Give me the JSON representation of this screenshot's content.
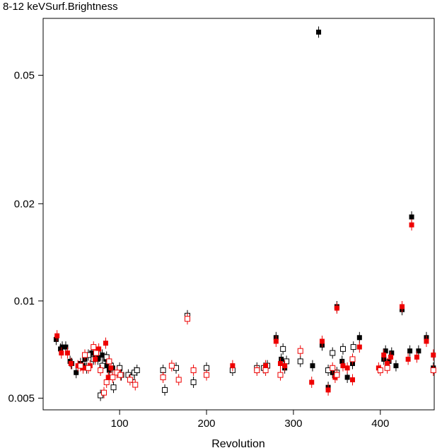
{
  "chart_data": {
    "type": "scatter",
    "title": "8-12 keVSurf.Brightness",
    "xlabel": "Revolution",
    "ylabel": "",
    "x_scale": "linear",
    "y_scale": "log",
    "xlim": [
      12,
      462
    ],
    "ylim": [
      0.0046,
      0.075
    ],
    "x_ticks": [
      100,
      200,
      300,
      400
    ],
    "x_tick_labels": [
      "100",
      "200",
      "300",
      "400"
    ],
    "y_ticks": [
      0.005,
      0.01,
      0.02,
      0.05
    ],
    "y_tick_labels": [
      "0.005",
      "0.01",
      "0.02",
      "0.05"
    ],
    "grid": false,
    "series": [
      {
        "color": "#000000",
        "marker": "filled-square",
        "points": [
          [
            27,
            0.0076
          ],
          [
            32,
            0.0071
          ],
          [
            34,
            0.0072
          ],
          [
            38,
            0.0072
          ],
          [
            43,
            0.0065
          ],
          [
            45,
            0.0064
          ],
          [
            50,
            0.006
          ],
          [
            55,
            0.0064
          ],
          [
            58,
            0.0063
          ],
          [
            60,
            0.0066
          ],
          [
            62,
            0.0062
          ],
          [
            68,
            0.0069
          ],
          [
            72,
            0.0067
          ],
          [
            75,
            0.0066
          ],
          [
            78,
            0.0068
          ],
          [
            80,
            0.0068
          ],
          [
            84,
            0.0066
          ],
          [
            86,
            0.0063
          ],
          [
            88,
            0.0061
          ],
          [
            92,
            0.0062
          ],
          [
            280,
            0.0077
          ],
          [
            286,
            0.0066
          ],
          [
            290,
            0.0062
          ],
          [
            322,
            0.0063
          ],
          [
            333,
            0.0073
          ],
          [
            329,
            0.068
          ],
          [
            340,
            0.0054
          ],
          [
            345,
            0.006
          ],
          [
            348,
            0.0059
          ],
          [
            350,
            0.0096
          ],
          [
            356,
            0.0065
          ],
          [
            362,
            0.0058
          ],
          [
            368,
            0.0064
          ],
          [
            376,
            0.0077
          ],
          [
            404,
            0.0066
          ],
          [
            406,
            0.007
          ],
          [
            410,
            0.0065
          ],
          [
            413,
            0.0069
          ],
          [
            418,
            0.0063
          ],
          [
            425,
            0.0094
          ],
          [
            434,
            0.007
          ],
          [
            436,
            0.0182
          ],
          [
            444,
            0.007
          ],
          [
            453,
            0.0077
          ],
          [
            461,
            0.0062
          ]
        ]
      },
      {
        "color": "#000000",
        "marker": "open-square",
        "points": [
          [
            64,
            0.0068
          ],
          [
            70,
            0.0066
          ],
          [
            75,
            0.0069
          ],
          [
            80,
            0.0063
          ],
          [
            85,
            0.0067
          ],
          [
            90,
            0.0063
          ],
          [
            100,
            0.0062
          ],
          [
            102,
            0.0059
          ],
          [
            110,
            0.0059
          ],
          [
            114,
            0.0058
          ],
          [
            117,
            0.006
          ],
          [
            120,
            0.0061
          ],
          [
            150,
            0.0061
          ],
          [
            152,
            0.0053
          ],
          [
            165,
            0.0062
          ],
          [
            178,
            0.009
          ],
          [
            185,
            0.0056
          ],
          [
            200,
            0.0062
          ],
          [
            230,
            0.0061
          ],
          [
            258,
            0.0062
          ],
          [
            266,
            0.0062
          ],
          [
            270,
            0.0063
          ],
          [
            288,
            0.0071
          ],
          [
            292,
            0.0065
          ],
          [
            308,
            0.0065
          ],
          [
            340,
            0.0061
          ],
          [
            345,
            0.0069
          ],
          [
            350,
            0.006
          ],
          [
            357,
            0.0071
          ],
          [
            369,
            0.0072
          ],
          [
            78,
            0.0051
          ],
          [
            93,
            0.0054
          ]
        ]
      },
      {
        "color": "#ee0000",
        "marker": "filled-square",
        "points": [
          [
            28,
            0.0078
          ],
          [
            33,
            0.0069
          ],
          [
            40,
            0.0069
          ],
          [
            44,
            0.0064
          ],
          [
            52,
            0.0063
          ],
          [
            58,
            0.0062
          ],
          [
            66,
            0.0063
          ],
          [
            72,
            0.0066
          ],
          [
            76,
            0.0071
          ],
          [
            84,
            0.0074
          ],
          [
            87,
            0.0058
          ],
          [
            90,
            0.0062
          ],
          [
            230,
            0.0063
          ],
          [
            268,
            0.0063
          ],
          [
            280,
            0.0075
          ],
          [
            285,
            0.0064
          ],
          [
            290,
            0.0063
          ],
          [
            321,
            0.0056
          ],
          [
            333,
            0.0075
          ],
          [
            340,
            0.0053
          ],
          [
            348,
            0.0058
          ],
          [
            350,
            0.0095
          ],
          [
            357,
            0.0063
          ],
          [
            362,
            0.0062
          ],
          [
            368,
            0.0057
          ],
          [
            376,
            0.0072
          ],
          [
            398,
            0.0062
          ],
          [
            404,
            0.0068
          ],
          [
            408,
            0.0064
          ],
          [
            412,
            0.0067
          ],
          [
            425,
            0.0096
          ],
          [
            432,
            0.0066
          ],
          [
            436,
            0.0172
          ],
          [
            442,
            0.0067
          ],
          [
            453,
            0.0075
          ],
          [
            461,
            0.0068
          ]
        ]
      },
      {
        "color": "#ee0000",
        "marker": "open-square",
        "points": [
          [
            55,
            0.0063
          ],
          [
            60,
            0.0068
          ],
          [
            64,
            0.0062
          ],
          [
            70,
            0.0072
          ],
          [
            73,
            0.0069
          ],
          [
            78,
            0.0061
          ],
          [
            82,
            0.0052
          ],
          [
            85,
            0.0056
          ],
          [
            88,
            0.0065
          ],
          [
            92,
            0.0058
          ],
          [
            97,
            0.006
          ],
          [
            101,
            0.0059
          ],
          [
            112,
            0.0057
          ],
          [
            118,
            0.0055
          ],
          [
            150,
            0.0058
          ],
          [
            160,
            0.0063
          ],
          [
            168,
            0.0057
          ],
          [
            178,
            0.0088
          ],
          [
            185,
            0.0061
          ],
          [
            200,
            0.0059
          ],
          [
            258,
            0.0061
          ],
          [
            268,
            0.0061
          ],
          [
            285,
            0.0059
          ],
          [
            308,
            0.007
          ],
          [
            345,
            0.0062
          ],
          [
            350,
            0.0059
          ],
          [
            368,
            0.0066
          ],
          [
            400,
            0.0061
          ],
          [
            408,
            0.0062
          ],
          [
            461,
            0.0061
          ]
        ]
      }
    ]
  }
}
